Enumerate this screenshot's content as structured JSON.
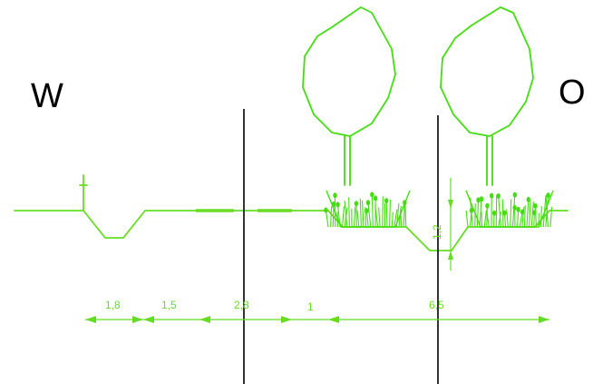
{
  "compass": {
    "west": "W",
    "east": "O"
  },
  "dimensions": [
    "1,8",
    "1,5",
    "2,8",
    "1",
    "6,5"
  ],
  "height_label": "1,2",
  "colors": {
    "profile": "#66dd22",
    "vegetation": "#44dd11",
    "reference_lines": "#000000"
  }
}
